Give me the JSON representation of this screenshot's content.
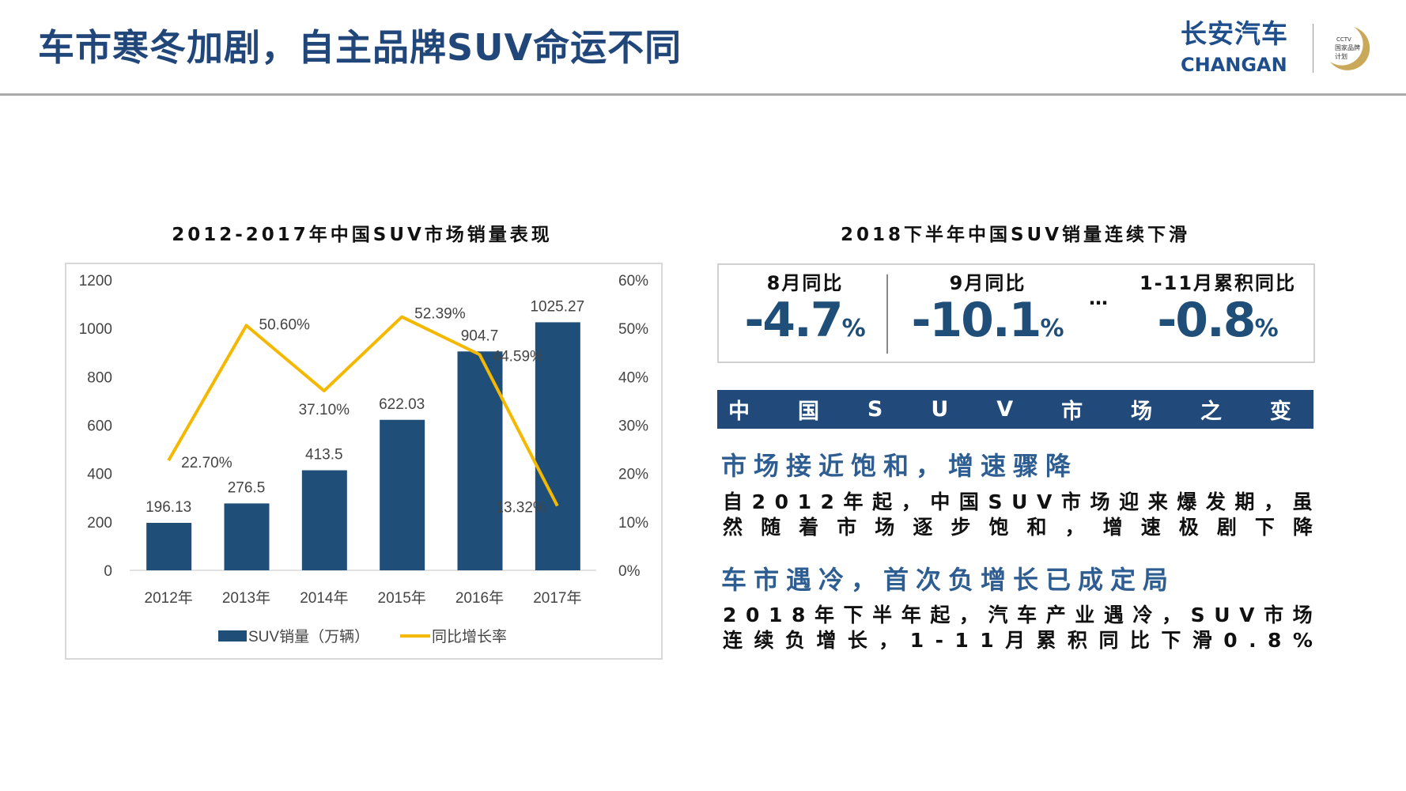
{
  "header": {
    "title": "车市寒冬加剧，自主品牌SUV命运不同",
    "logo_cn": "长安汽车",
    "logo_en": "CHANGAN",
    "emblem_text": "CCTV 国家品牌计划"
  },
  "left": {
    "title": "2012-2017年中国SUV市场销量表现"
  },
  "chart_data": {
    "type": "bar+line",
    "categories": [
      "2012年",
      "2013年",
      "2014年",
      "2015年",
      "2016年",
      "2017年"
    ],
    "series": [
      {
        "name": "SUV销量（万辆）",
        "type": "bar",
        "axis": "left",
        "values": [
          196.13,
          276.5,
          413.5,
          622.03,
          904.7,
          1025.27
        ],
        "labels": [
          "196.13",
          "276.5",
          "413.5",
          "622.03",
          "904.7",
          "1025.27"
        ],
        "color": "#1f4e79"
      },
      {
        "name": "同比增长率",
        "type": "line",
        "axis": "right",
        "values": [
          22.7,
          50.6,
          37.1,
          52.39,
          44.59,
          13.32
        ],
        "labels": [
          "22.70%",
          "50.60%",
          "37.10%",
          "52.39%",
          "44.59%",
          "13.32%"
        ],
        "color": "#f5b800"
      }
    ],
    "yleft": {
      "range": [
        0,
        1200
      ],
      "ticks": [
        "0",
        "200",
        "400",
        "600",
        "800",
        "1000",
        "1200"
      ]
    },
    "yright": {
      "range": [
        0,
        60
      ],
      "ticks": [
        "0%",
        "10%",
        "20%",
        "30%",
        "40%",
        "50%",
        "60%"
      ]
    },
    "grid": false,
    "legend": "bottom"
  },
  "right": {
    "title": "2018下半年中国SUV销量连续下滑",
    "stats": [
      {
        "label": "8月同比",
        "value": "-4.7",
        "unit": "%"
      },
      {
        "label": "9月同比",
        "value": "-10.1",
        "unit": "%"
      },
      {
        "label": "1-11月累积同比",
        "value": "-0.8",
        "unit": "%"
      }
    ],
    "ellipsis": "…",
    "band_chars": [
      "中",
      "国",
      "S",
      "U",
      "V",
      "市",
      "场",
      "之",
      "变"
    ],
    "sections": [
      {
        "heading": "市场接近饱和，增速骤降",
        "lines": [
          "自2012年起，中国SUV市场迎来爆发期，虽",
          "然随着市场逐步饱和，增速极剧下降"
        ]
      },
      {
        "heading": "车市遇冷，首次负增长已成定局",
        "lines": [
          "2018年下半年起，汽车产业遇冷，SUV市场",
          "连续负增长，1-11月累积同比下滑0.8%"
        ]
      }
    ]
  }
}
